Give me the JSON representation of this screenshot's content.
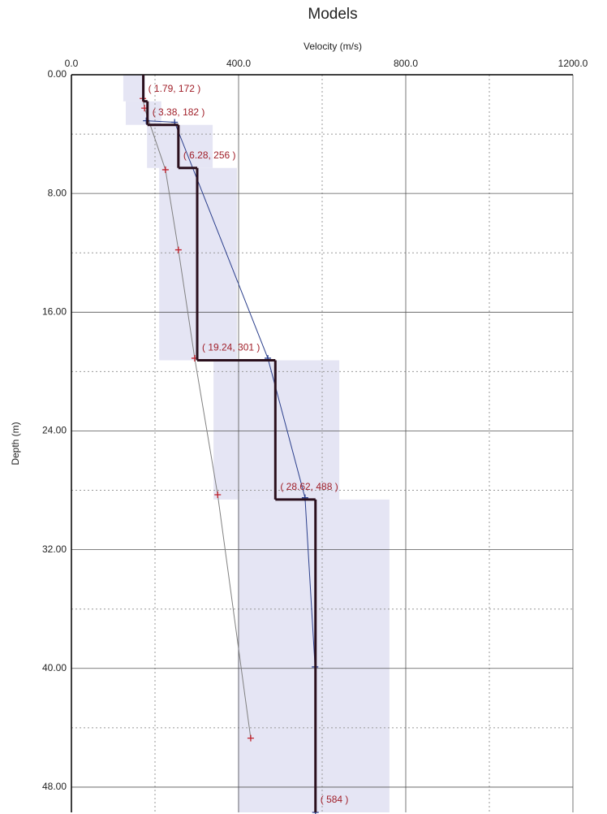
{
  "chart_data": {
    "type": "velocity-profile",
    "title": "Models",
    "x_label": "Velocity (m/s)",
    "y_label": "Depth (m)",
    "xlim": [
      0,
      1200
    ],
    "ylim": [
      0,
      49.7
    ],
    "xticks": [
      {
        "value": 0,
        "label": "0.0"
      },
      {
        "value": 400,
        "label": "400.0"
      },
      {
        "value": 800,
        "label": "800.0"
      },
      {
        "value": 1200,
        "label": "1200.0"
      }
    ],
    "yticks": [
      {
        "value": 0,
        "label": "0.00"
      },
      {
        "value": 8,
        "label": "8.00"
      },
      {
        "value": 16,
        "label": "16.00"
      },
      {
        "value": 24,
        "label": "24.00"
      },
      {
        "value": 32,
        "label": "32.00"
      },
      {
        "value": 40,
        "label": "40.00"
      },
      {
        "value": 48,
        "label": "48.00"
      }
    ],
    "x_minor_grid": [
      200,
      600,
      1000
    ],
    "y_minor_grid": [
      4,
      12,
      20,
      28,
      36,
      44
    ],
    "layers": {
      "color": "#2a0f1c",
      "range_color": "#dcdcf0",
      "velocities": [
        172,
        182,
        256,
        301,
        488,
        584
      ],
      "bottom_depths": [
        1.79,
        3.38,
        6.28,
        19.24,
        28.62,
        null
      ],
      "value_labels": [
        "( 1.79, 172 )",
        "( 3.38, 182 )",
        "( 6.28, 256 )",
        "( 19.24, 301 )",
        "( 28.62, 488 )",
        "( 584 )"
      ],
      "velocity_min": [
        124,
        130,
        181,
        210,
        340,
        398
      ],
      "velocity_max": [
        176,
        215,
        338,
        396,
        641,
        761
      ]
    },
    "series": [
      {
        "color": "#808080",
        "marker_color": "#c0202a",
        "x": [
          171,
          175,
          225,
          256,
          295,
          350,
          429
        ],
        "y": [
          1.6,
          2.25,
          6.4,
          11.8,
          19.1,
          28.3,
          44.7
        ]
      },
      {
        "color": "#2b3f8c",
        "marker_color": "#2b3f8c",
        "x": [
          179,
          247,
          470,
          559,
          583,
          584
        ],
        "y": [
          3.1,
          3.2,
          19.1,
          28.5,
          39.9,
          49.7
        ]
      }
    ]
  }
}
